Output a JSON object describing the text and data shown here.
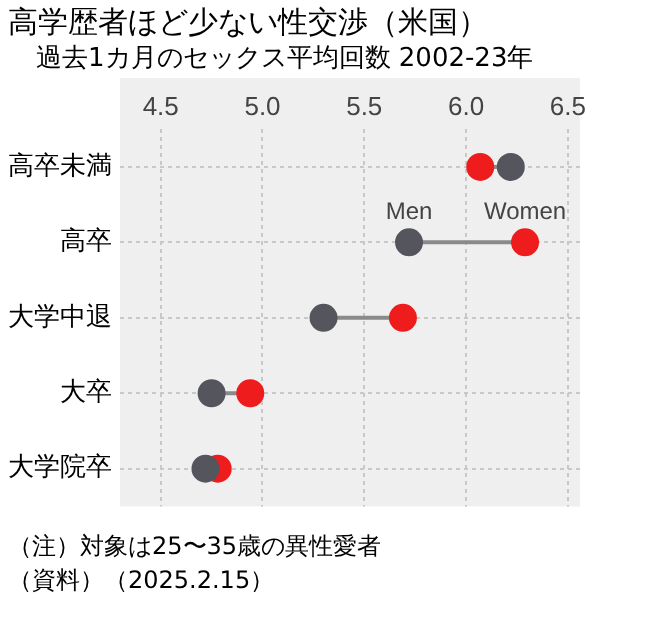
{
  "chart_data": {
    "type": "scatter",
    "title": "高学歴者ほど少ない性交渉（米国）",
    "subtitle": "過去1カ月のセックス平均回数 2002-23年",
    "orientation": "horizontal",
    "categories": [
      "高卒未満",
      "高卒",
      "大学中退",
      "大卒",
      "大学院卒"
    ],
    "series": [
      {
        "name": "Men",
        "color": "#55555d",
        "values": [
          6.22,
          5.72,
          5.3,
          4.75,
          4.72
        ]
      },
      {
        "name": "Women",
        "color": "#ee1c1c",
        "values": [
          6.07,
          6.29,
          5.69,
          4.94,
          4.78
        ]
      }
    ],
    "xlim": [
      4.3,
      6.56
    ],
    "xticks": [
      4.5,
      {
        "value": 5,
        "label": "5.0"
      },
      5.5,
      {
        "value": 6,
        "label": "6.0"
      },
      6.5
    ],
    "grid": true,
    "marker": "circle",
    "annotations": [
      "（注）対象は25〜35歳の異性愛者",
      "（資料）（2025.2.15）"
    ]
  }
}
